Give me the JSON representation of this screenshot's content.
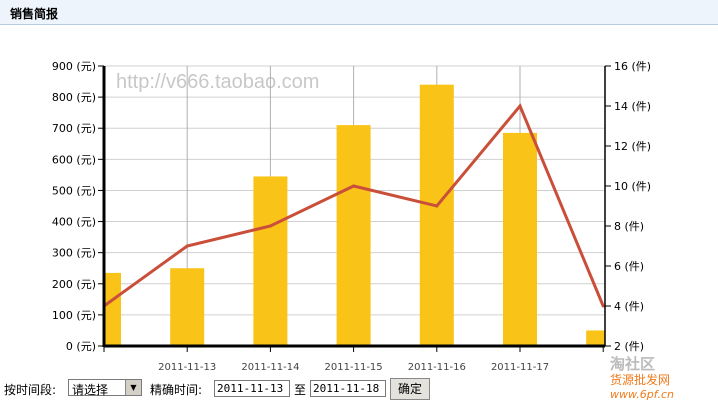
{
  "header": {
    "title": "销售简报"
  },
  "watermark": "http://v666.taobao.com",
  "chart_data": {
    "type": "bar+line",
    "categories": [
      "",
      "2011-11-13",
      "2011-11-14",
      "2011-11-15",
      "2011-11-16",
      "2011-11-17",
      ""
    ],
    "left_axis": {
      "ticks": [
        "0 (元)",
        "100 (元)",
        "200 (元)",
        "300 (元)",
        "400 (元)",
        "500 (元)",
        "600 (元)",
        "700 (元)",
        "800 (元)",
        "900 (元)"
      ],
      "ylim": [
        0,
        900
      ]
    },
    "right_axis": {
      "ticks": [
        "2 (件)",
        "4 (件)",
        "6 (件)",
        "8 (件)",
        "10 (件)",
        "12 (件)",
        "14 (件)",
        "16 (件)"
      ],
      "ylim": [
        2,
        16
      ]
    },
    "series": [
      {
        "type": "bar",
        "axis": "left",
        "color": "#f9c318",
        "values": [
          235,
          250,
          545,
          710,
          840,
          685,
          50
        ]
      },
      {
        "type": "line",
        "axis": "right",
        "color": "#c94f3a",
        "values": [
          4,
          7,
          8,
          10,
          9,
          14,
          4
        ]
      }
    ],
    "grid": true
  },
  "controls": {
    "period_label": "按时间段:",
    "period_value": "请选择",
    "exact_label": "精确时间:",
    "from": "2011-11-13",
    "to_label": "至",
    "to": "2011-11-18",
    "confirm": "确定"
  },
  "logo_text": "淘社区 货源批发网 www.6pf.cn"
}
